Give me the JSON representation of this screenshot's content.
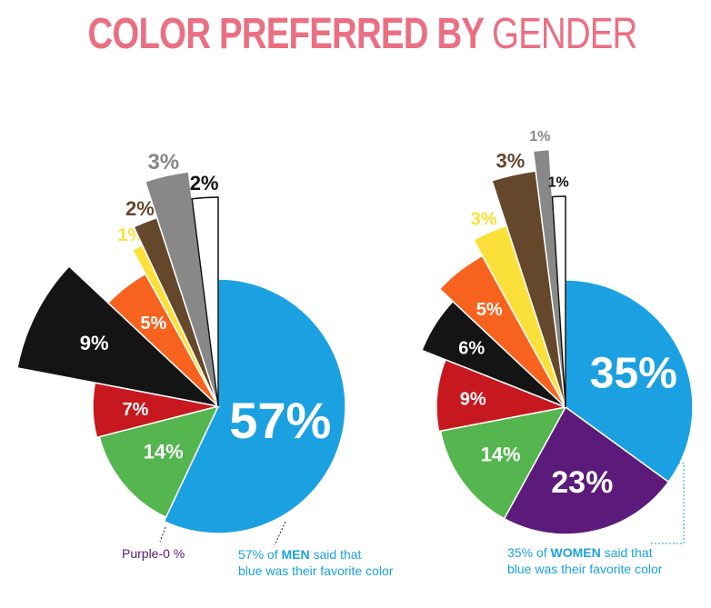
{
  "title": {
    "bold": "COLOR PREFERRED BY",
    "light": "GENDER"
  },
  "notes": {
    "men_purple": "Purple-0 %",
    "men_caption_pre": "57% of ",
    "men_caption_key": "MEN",
    "men_caption_post": " said that",
    "men_caption_line2": "blue was their favorite color",
    "women_caption_pre": "35% of ",
    "women_caption_key": "WOMEN",
    "women_caption_post": " said that",
    "women_caption_line2": "blue was their favorite color"
  },
  "chart_data": [
    {
      "type": "pie",
      "title": "",
      "group": "MEN",
      "categories": [
        "blue",
        "purple",
        "green",
        "red",
        "black",
        "orange",
        "yellow",
        "brown",
        "gray",
        "white"
      ],
      "values": [
        57,
        0,
        14,
        7,
        9,
        5,
        1,
        2,
        3,
        2
      ],
      "labels": [
        "57%",
        "",
        "14%",
        "7%",
        "9%",
        "5%",
        "1%",
        "2%",
        "3%",
        "2%"
      ],
      "colors": [
        "#1ba1e2",
        "#5c1a7a",
        "#55b64f",
        "#c8181f",
        "#141414",
        "#f7631f",
        "#fce03a",
        "#65472b",
        "#888888",
        "#ffffff"
      ]
    },
    {
      "type": "pie",
      "title": "",
      "group": "WOMEN",
      "categories": [
        "blue",
        "purple",
        "green",
        "red",
        "black",
        "orange",
        "yellow",
        "brown",
        "gray",
        "white"
      ],
      "values": [
        35,
        23,
        14,
        9,
        6,
        5,
        3,
        3,
        1,
        1
      ],
      "labels": [
        "35%",
        "23%",
        "14%",
        "9%",
        "6%",
        "5%",
        "3%",
        "3%",
        "1%",
        "1%"
      ],
      "colors": [
        "#1ba1e2",
        "#5c1a7a",
        "#55b64f",
        "#c8181f",
        "#141414",
        "#f7631f",
        "#fce03a",
        "#65472b",
        "#888888",
        "#ffffff"
      ]
    }
  ]
}
